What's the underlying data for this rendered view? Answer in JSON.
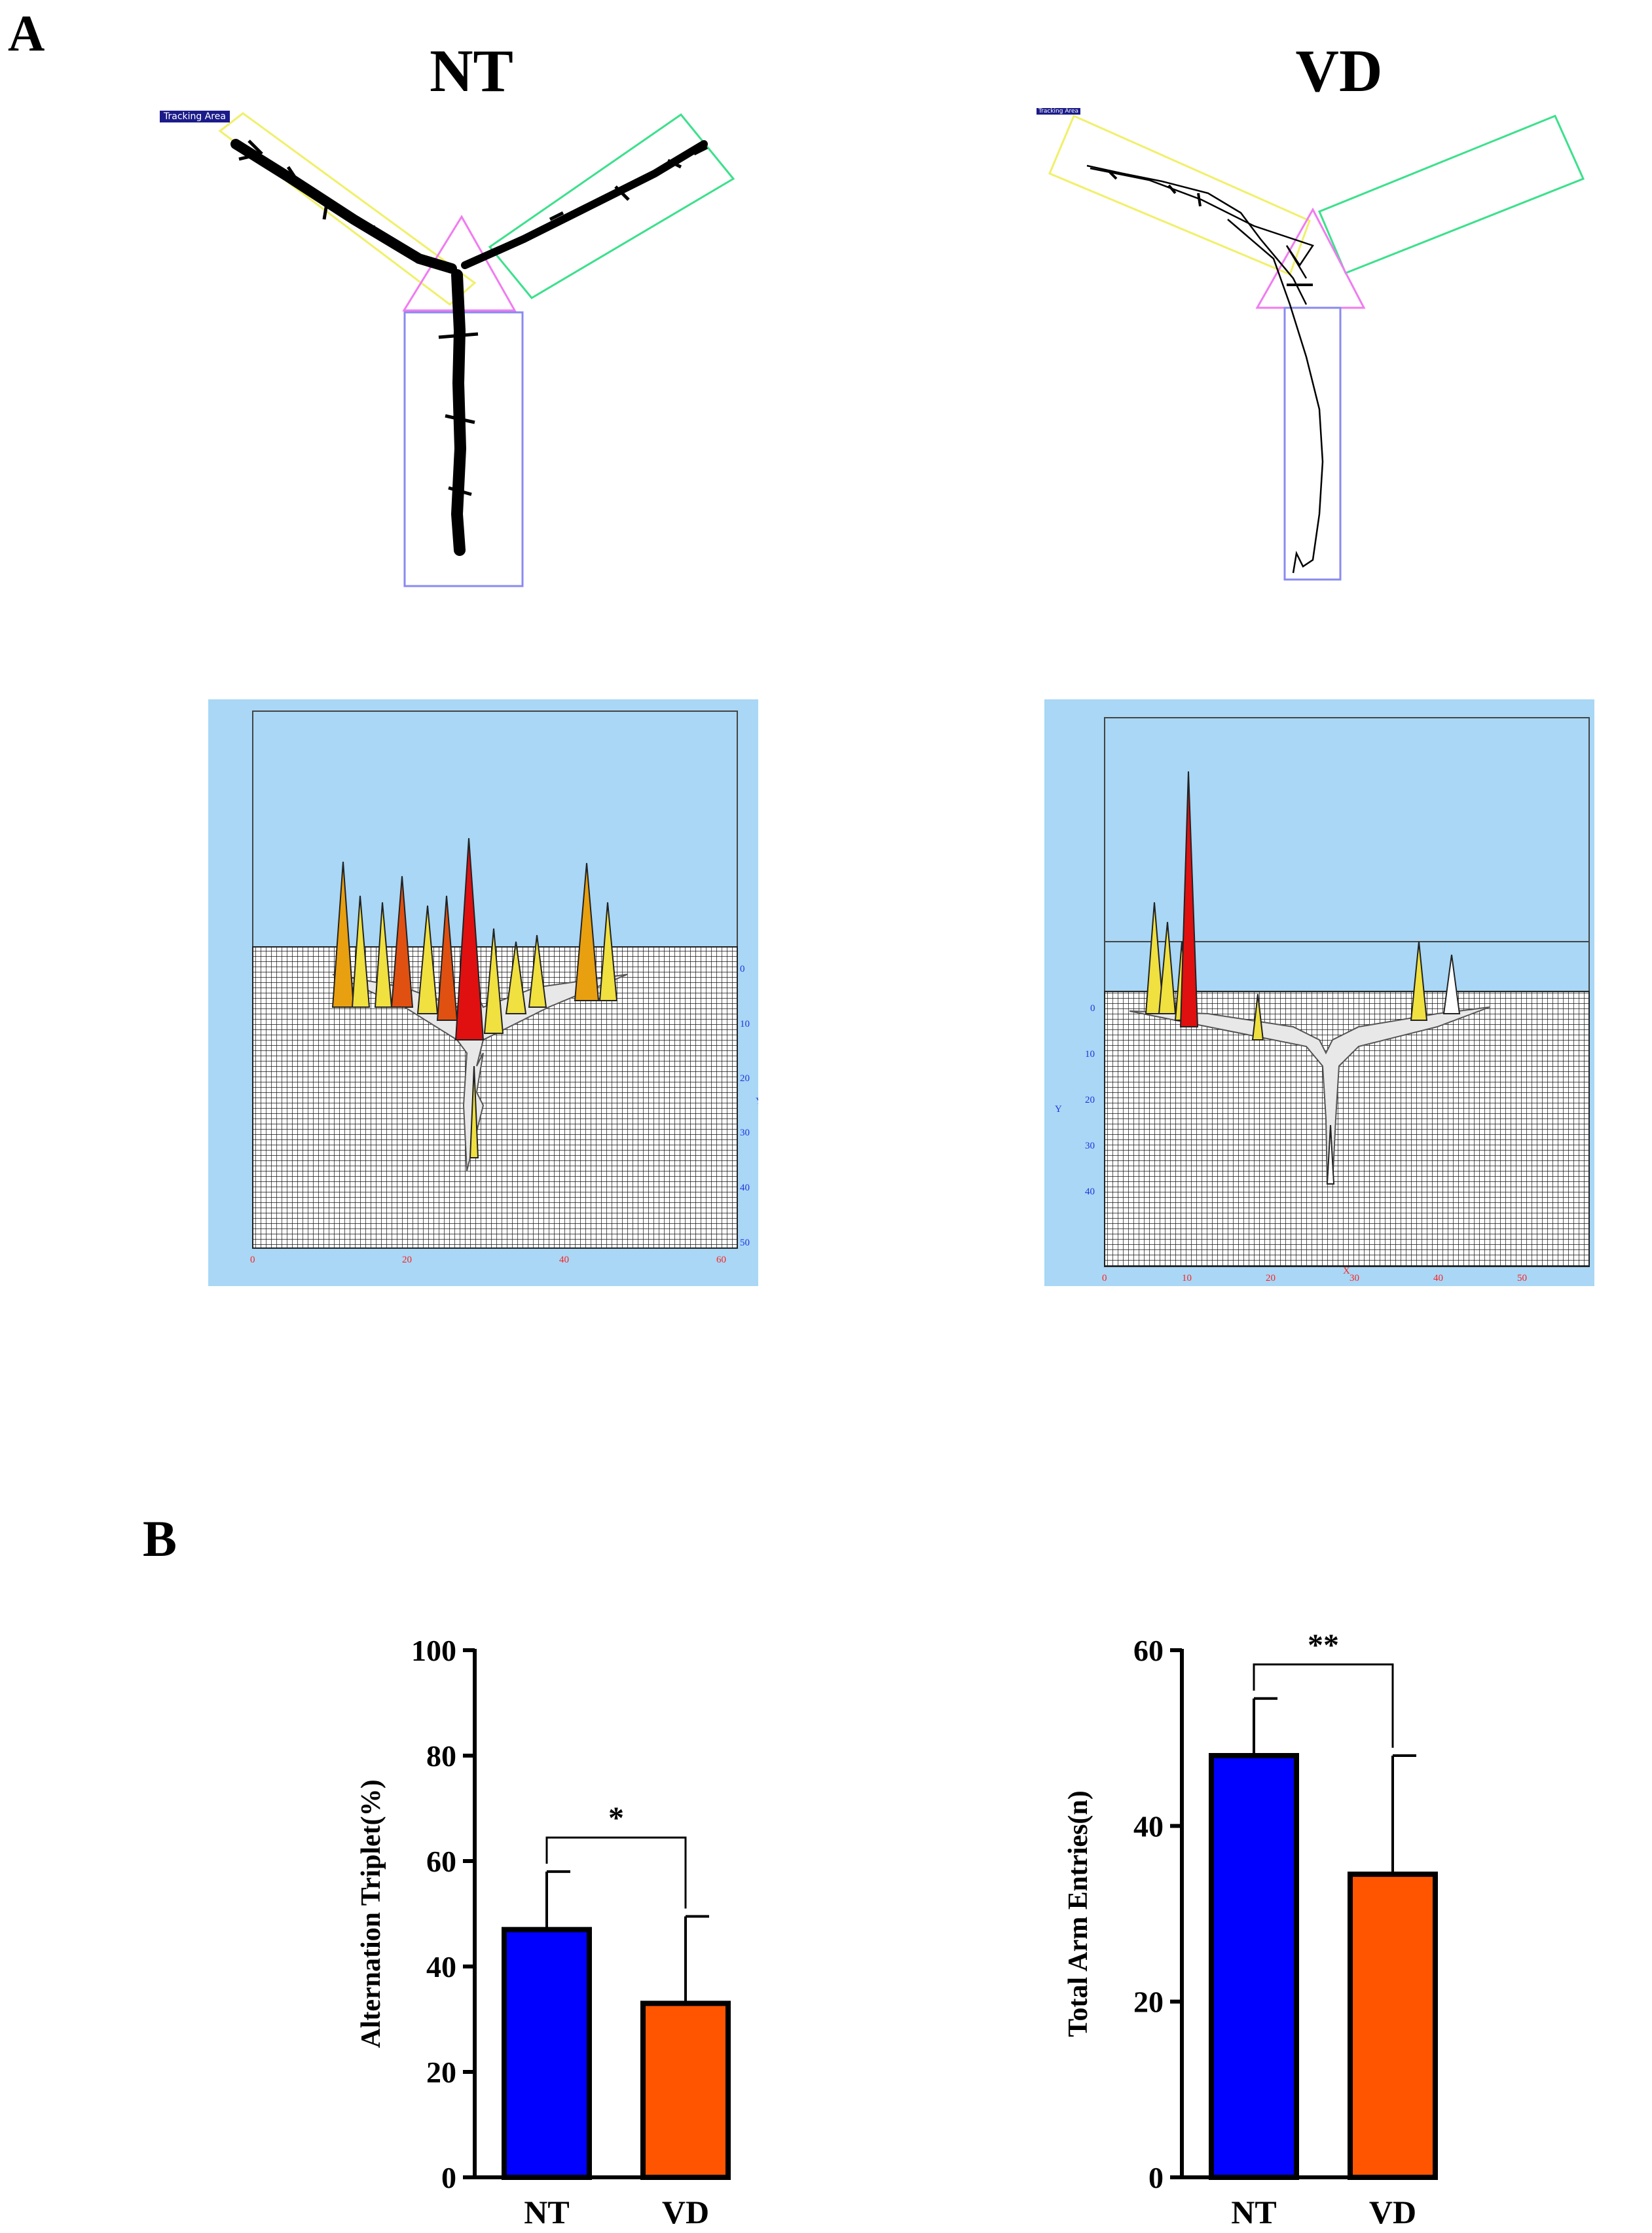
{
  "figure": {
    "panel_a_letter": "A",
    "panel_b_letter": "B",
    "groups": {
      "nt": "NT",
      "vd": "VD"
    },
    "tracking_label": "Tracking Area",
    "heatmaps": {
      "nt": {
        "x_ticks": [
          "0",
          "20",
          "40",
          "60"
        ],
        "y_ticks": [
          "0",
          "10",
          "20",
          "30",
          "40",
          "50"
        ],
        "y_label": "Y"
      },
      "vd": {
        "x_ticks": [
          "0",
          "10",
          "20",
          "30",
          "40",
          "50"
        ],
        "y_ticks": [
          "0",
          "10",
          "20",
          "30",
          "40"
        ],
        "x_label": "X",
        "y_label": "Y"
      }
    },
    "colors": {
      "nt_bar": "#0000FF",
      "vd_bar": "#FF5500",
      "heatmap_bg": "#A9D7F5",
      "yellow_box": "#F0F06A",
      "green_box": "#3CE08C",
      "blue_box": "#8A8AF0",
      "pink_triangle": "#F07CF0"
    }
  },
  "chart_data": [
    {
      "type": "bar",
      "title": "",
      "xlabel": "",
      "ylabel": "Alternation Triplet(%)",
      "categories": [
        "NT",
        "VD"
      ],
      "values": [
        47,
        33
      ],
      "error": [
        11,
        16.5
      ],
      "ylim": [
        0,
        100
      ],
      "yticks": [
        "0",
        "20",
        "40",
        "60",
        "80",
        "100"
      ],
      "significance": "*",
      "grid": false
    },
    {
      "type": "bar",
      "title": "",
      "xlabel": "",
      "ylabel": "Total Arm Entries(n)",
      "categories": [
        "NT",
        "VD"
      ],
      "values": [
        48,
        34.5
      ],
      "error": [
        6.5,
        13.5
      ],
      "ylim": [
        0,
        60
      ],
      "yticks": [
        "0",
        "20",
        "40",
        "60"
      ],
      "significance": "**",
      "grid": false
    }
  ]
}
